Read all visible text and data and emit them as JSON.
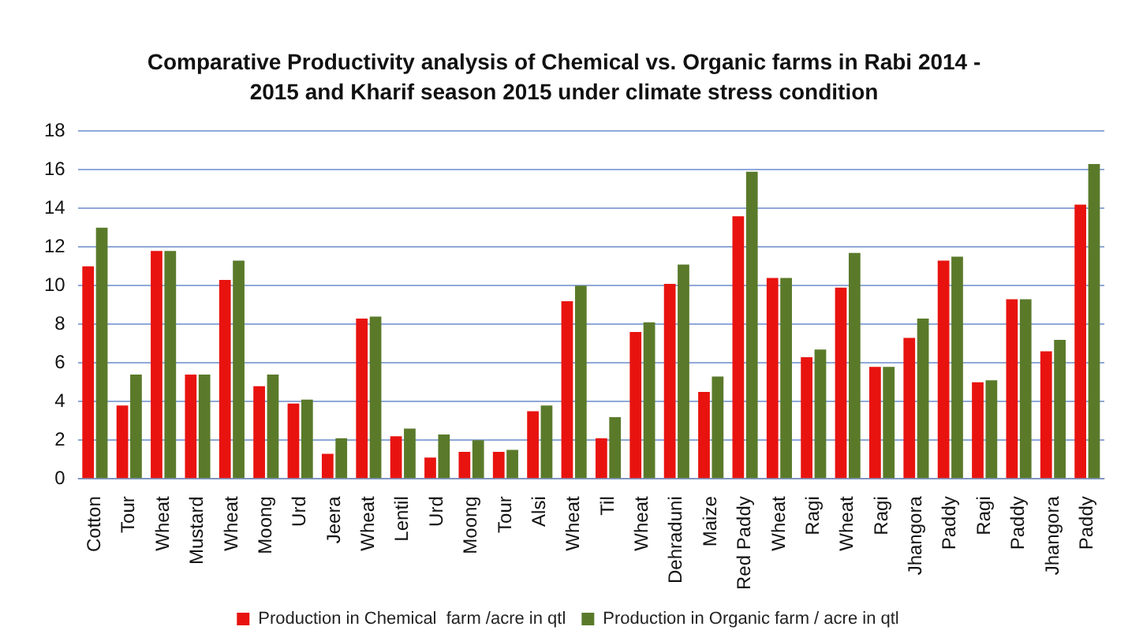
{
  "chart_data": {
    "type": "bar",
    "title": "Comparative Productivity analysis of Chemical vs. Organic farms in Rabi 2014 -  2015 and Kharif season 2015 under climate stress condition",
    "categories": [
      "Cotton",
      "Tour",
      "Wheat",
      "Mustard",
      "Wheat",
      "Moong",
      "Urd",
      "Jeera",
      "Wheat",
      "Lentil",
      "Urd",
      "Moong",
      "Tour",
      "Alsi",
      "Wheat",
      "Til",
      "Wheat",
      "Dehraduni",
      "Maize",
      "Red Paddy",
      "Wheat",
      "Ragi",
      "Wheat",
      "Ragi",
      "Jhangora",
      "Paddy",
      "Ragi",
      "Paddy",
      "Jhangora",
      "Paddy"
    ],
    "series": [
      {
        "name": "Production in Chemical  farm /acre in qtl",
        "color": "#e8130f",
        "values": [
          11,
          3.8,
          11.8,
          5.4,
          10.3,
          4.8,
          3.9,
          1.3,
          8.3,
          2.2,
          1.1,
          1.4,
          1.4,
          3.5,
          9.2,
          2.1,
          7.6,
          10.1,
          4.5,
          13.6,
          10.4,
          6.3,
          9.9,
          5.8,
          7.3,
          11.3,
          5,
          9.3,
          6.6,
          14.2
        ]
      },
      {
        "name": "Production in Organic farm / acre in qtl",
        "color": "#5a7a2a",
        "values": [
          13,
          5.4,
          11.8,
          5.4,
          11.3,
          5.4,
          4.1,
          2.1,
          8.4,
          2.6,
          2.3,
          2,
          1.5,
          3.8,
          10,
          3.2,
          8.1,
          11.1,
          5.3,
          15.9,
          10.4,
          6.7,
          11.7,
          5.8,
          8.3,
          11.5,
          5.1,
          9.3,
          7.2,
          16.3
        ]
      }
    ],
    "ylim": [
      0,
      18
    ],
    "yticks": [
      0,
      2,
      4,
      6,
      8,
      10,
      12,
      14,
      16,
      18
    ],
    "grid": "y",
    "legend": "bottom"
  }
}
